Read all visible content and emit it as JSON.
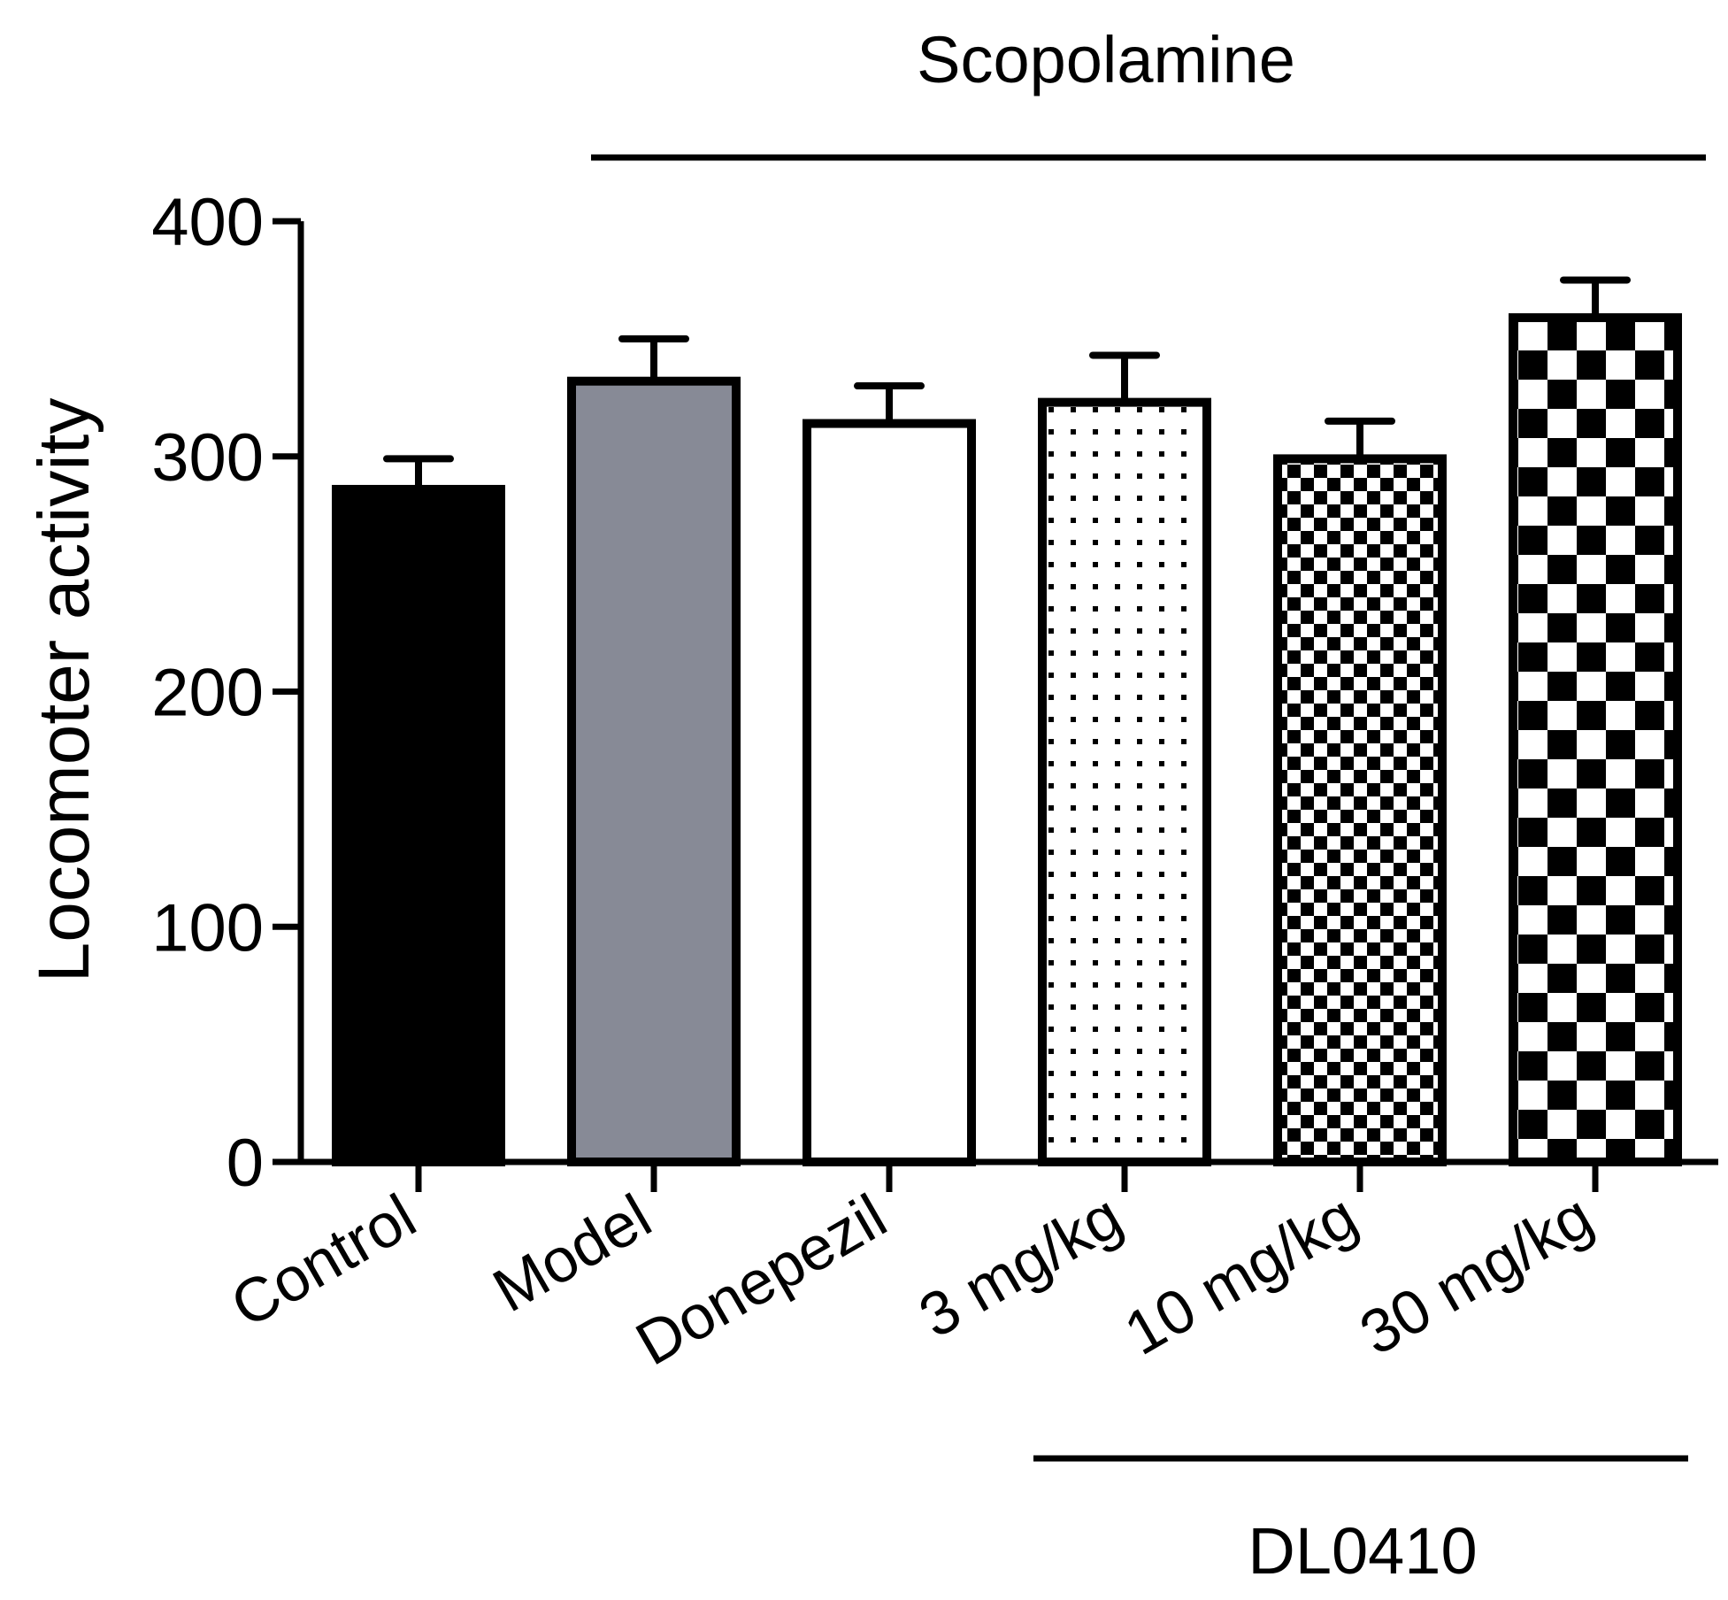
{
  "chart_data": {
    "type": "bar",
    "title": "",
    "xlabel": "",
    "ylabel": "Locomoter activity",
    "ylim": [
      0,
      400
    ],
    "yticks": [
      0,
      100,
      200,
      300,
      400
    ],
    "grid": false,
    "categories": [
      "Control",
      "Model",
      "Donepezil",
      "3 mg/kg",
      "10 mg/kg",
      "30 mg/kg"
    ],
    "values": [
      286,
      332,
      314,
      323,
      299,
      359
    ],
    "errors": [
      13,
      18,
      16,
      20,
      16,
      16
    ],
    "fills": [
      "solid-black",
      "solid-gray",
      "white",
      "dots",
      "small-checker",
      "large-checker"
    ],
    "group_labels": {
      "top": "Scopolamine",
      "bottom": "DL0410"
    }
  },
  "colors": {
    "axis": "#000000",
    "model_fill": "#878a96",
    "control_fill": "#000000",
    "background": "#ffffff"
  }
}
